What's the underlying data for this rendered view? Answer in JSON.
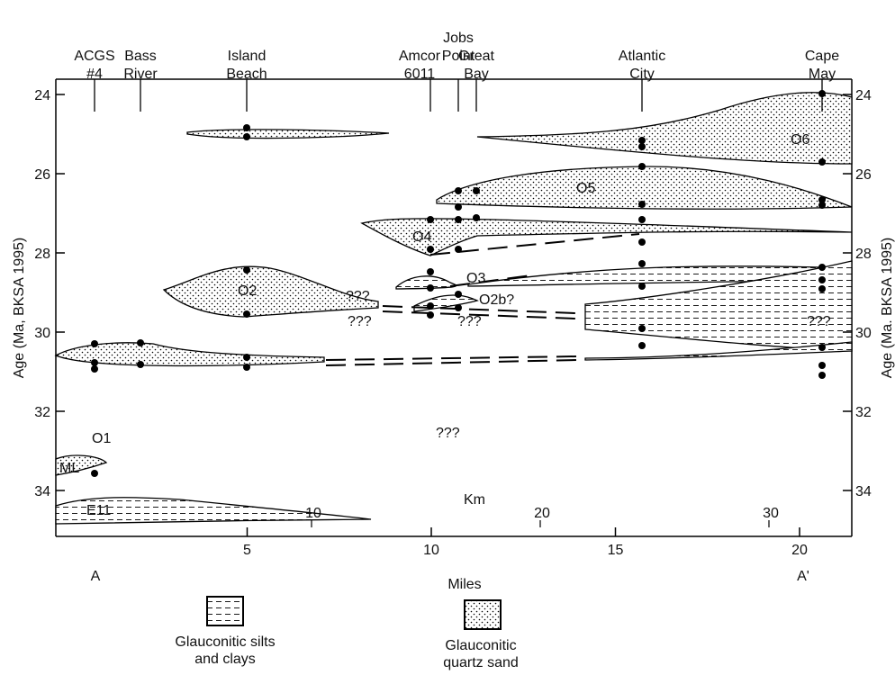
{
  "axes": {
    "left_label": "Age (Ma, BKSA 1995)",
    "right_label": "Age (Ma. BKSA 1995)",
    "age_ticks": [
      24,
      26,
      28,
      30,
      32,
      34
    ],
    "mile_ticks": [
      5,
      10,
      15,
      20
    ],
    "km_ticks": [
      10,
      20,
      30
    ],
    "miles_label": "Miles",
    "km_label": "Km",
    "start": "A",
    "end": "A'"
  },
  "wells": [
    {
      "lines": [
        "ACGS",
        "#4"
      ]
    },
    {
      "lines": [
        "Bass",
        "River"
      ]
    },
    {
      "lines": [
        "Island",
        "Beach"
      ]
    },
    {
      "lines": [
        "Amcor",
        "6011"
      ]
    },
    {
      "lines": [
        "Jobs",
        "Point"
      ]
    },
    {
      "lines": [
        "Great",
        "Bay"
      ]
    },
    {
      "lines": [
        "Atlantic",
        "City"
      ]
    },
    {
      "lines": [
        "Cape",
        "May"
      ]
    }
  ],
  "units": [
    "O6",
    "O5",
    "O4",
    "O3",
    "O2b?",
    "O2",
    "O1",
    "ML",
    "E11"
  ],
  "unknowns": [
    "???",
    "???",
    "???",
    "???",
    "???"
  ],
  "legend": {
    "silts": [
      "Glauconitic silts",
      "and clays"
    ],
    "sand": [
      "Glauconitic",
      "quartz sand"
    ]
  }
}
